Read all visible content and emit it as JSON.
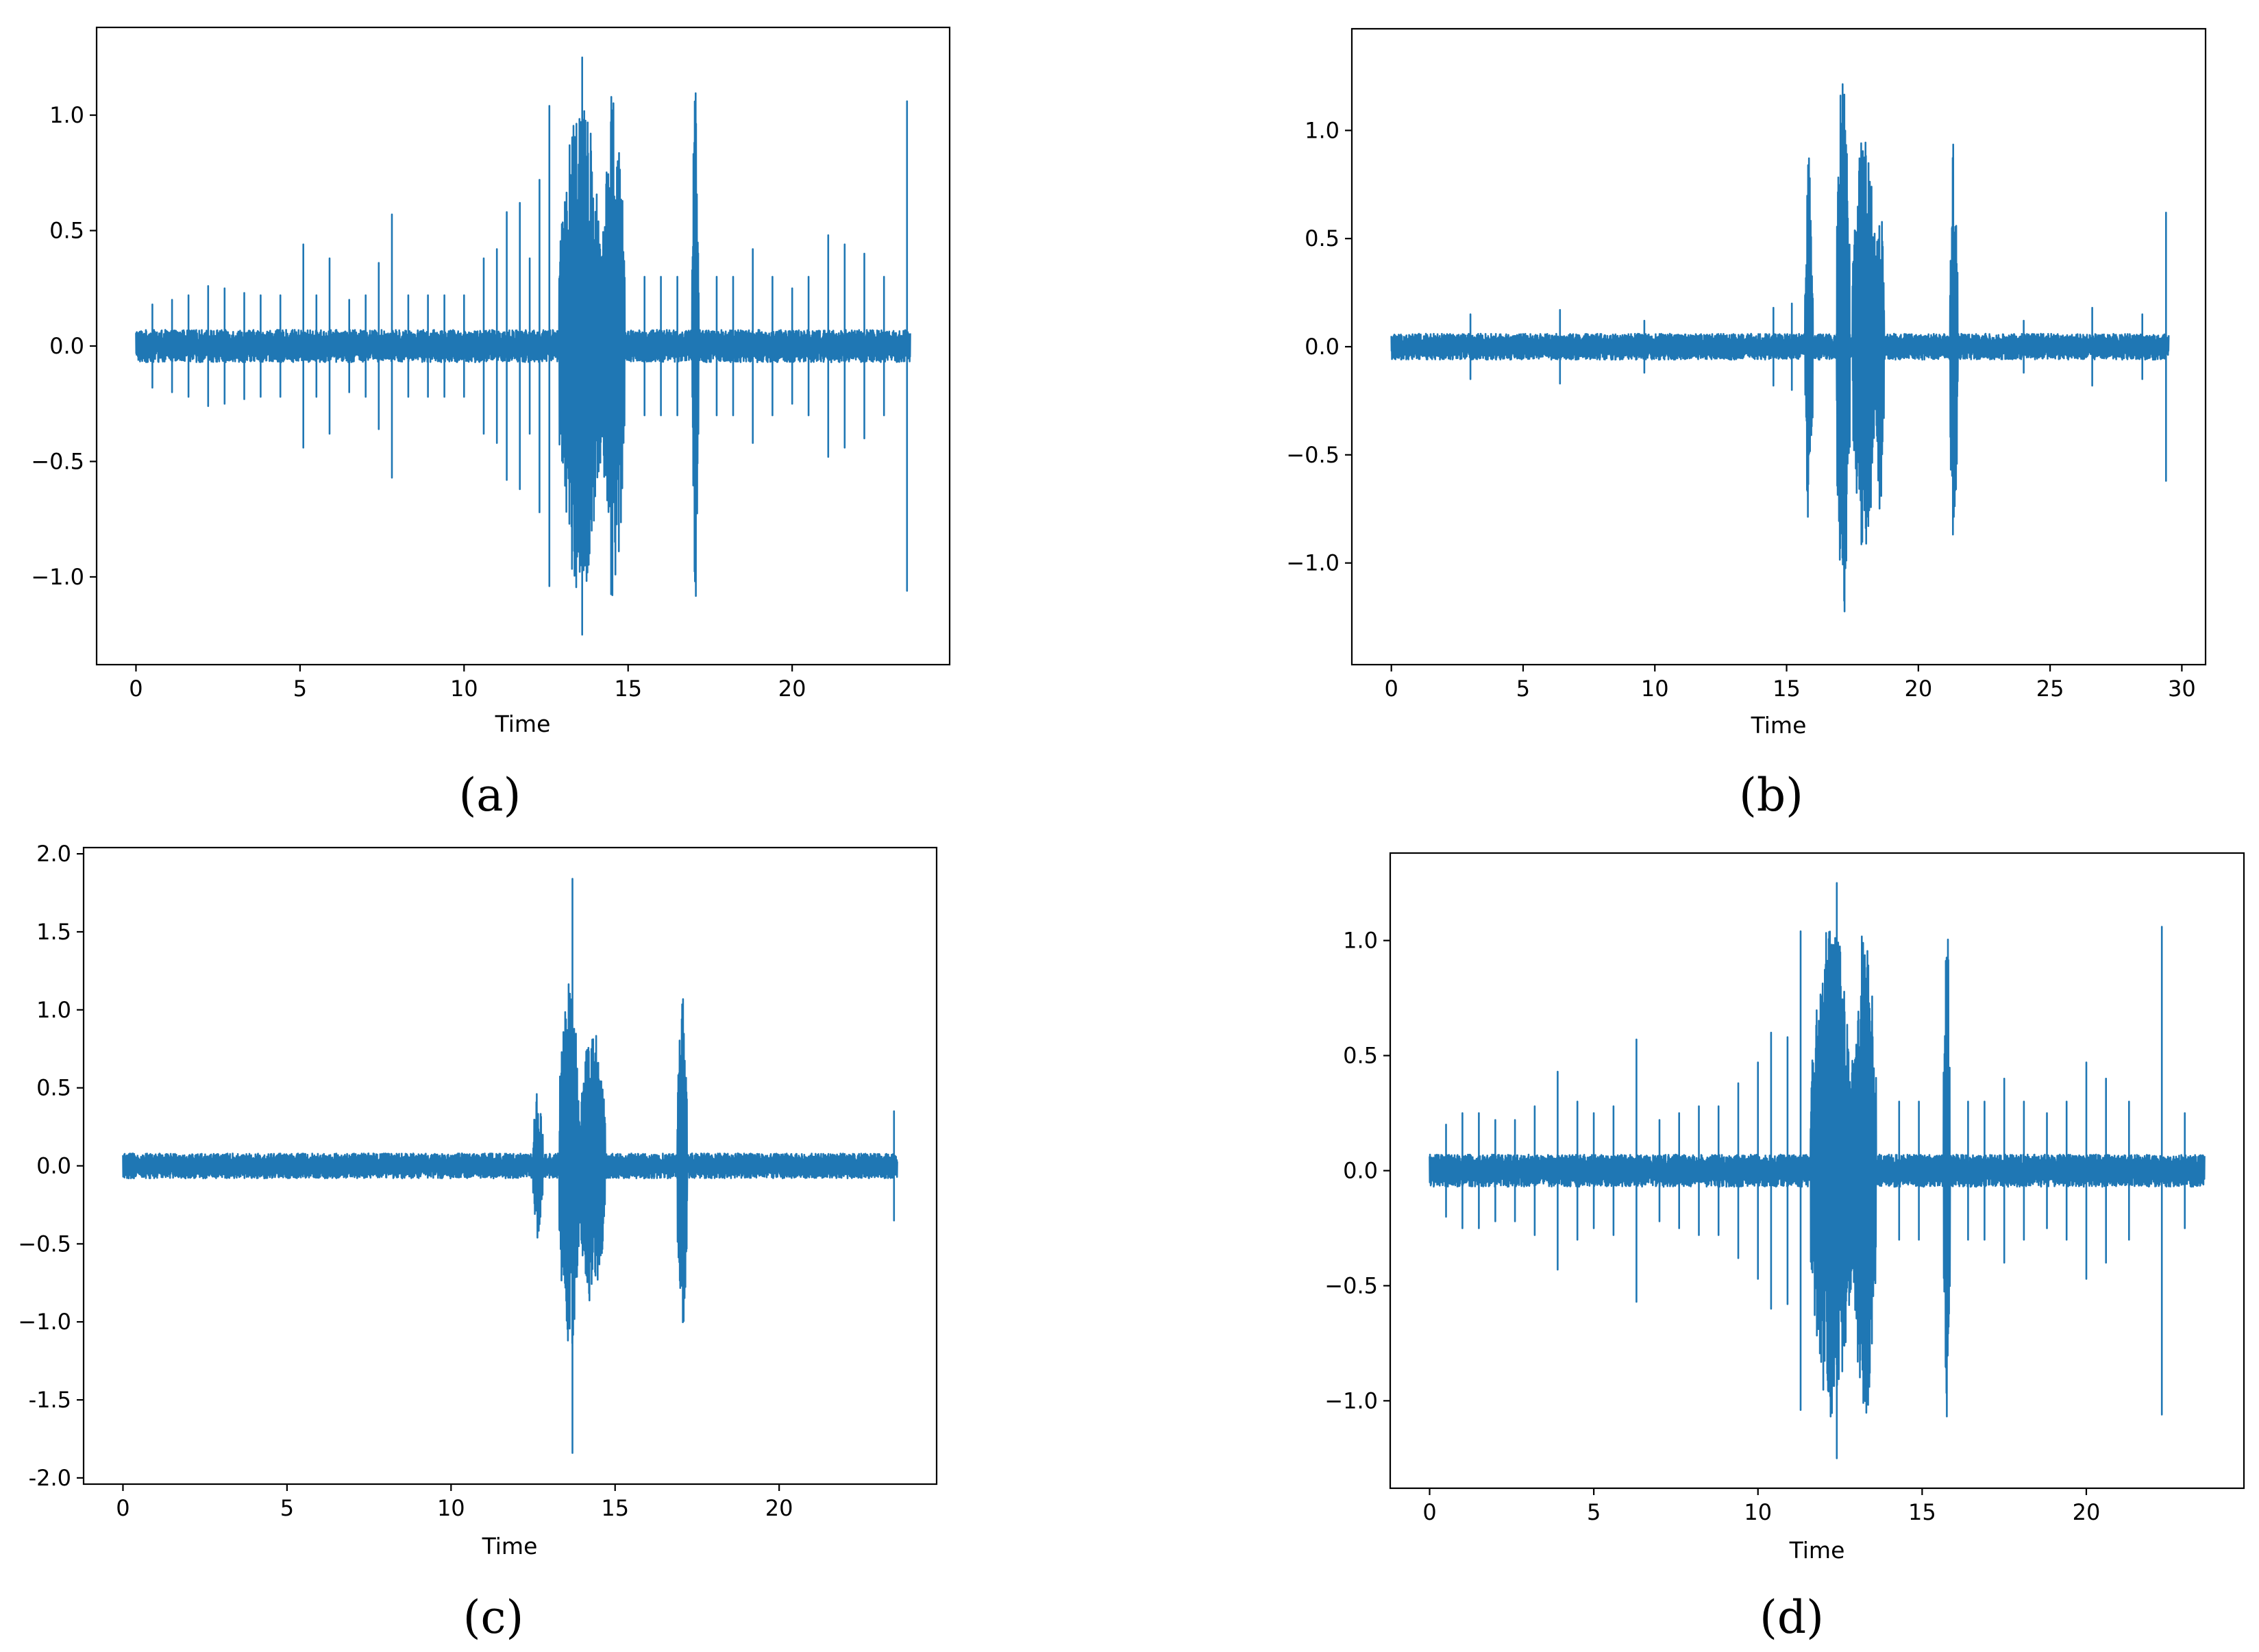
{
  "figure": {
    "line_color": "#1f77b4",
    "captions": [
      "(a)",
      "(b)",
      "(c)",
      "(d)"
    ]
  },
  "chart_data": [
    {
      "type": "line",
      "panel": "(a)",
      "xlabel": "Time",
      "ylabel": "",
      "xlim": [
        -1.2,
        24.8
      ],
      "ylim": [
        -1.38,
        1.38
      ],
      "xticks": [
        0,
        5,
        10,
        15,
        20
      ],
      "xtick_labels": [
        "0",
        "5",
        "10",
        "15",
        "20"
      ],
      "yticks": [
        -1.0,
        -0.5,
        0.0,
        0.5,
        1.0
      ],
      "ytick_labels": [
        "−1.0",
        "−0.5",
        "0.0",
        "0.5",
        "1.0"
      ],
      "series": [
        {
          "duration": 23.6,
          "baseline_amplitude": 0.07,
          "bursts": [
            {
              "start": 12.9,
              "end": 14.2,
              "amplitude": 1.1
            },
            {
              "start": 14.2,
              "end": 14.9,
              "amplitude": 1.12
            },
            {
              "start": 16.95,
              "end": 17.15,
              "amplitude": 1.15
            }
          ],
          "spikes": [
            {
              "t": 0.5,
              "v": 0.18
            },
            {
              "t": 1.1,
              "v": 0.2
            },
            {
              "t": 1.6,
              "v": 0.22
            },
            {
              "t": 2.2,
              "v": 0.26
            },
            {
              "t": 2.7,
              "v": 0.25
            },
            {
              "t": 3.3,
              "v": 0.23
            },
            {
              "t": 3.8,
              "v": 0.22
            },
            {
              "t": 4.4,
              "v": 0.22
            },
            {
              "t": 5.1,
              "v": 0.44
            },
            {
              "t": 5.5,
              "v": 0.22
            },
            {
              "t": 5.9,
              "v": 0.38
            },
            {
              "t": 6.5,
              "v": 0.2
            },
            {
              "t": 7.0,
              "v": 0.22
            },
            {
              "t": 7.4,
              "v": 0.36
            },
            {
              "t": 7.8,
              "v": 0.57
            },
            {
              "t": 8.3,
              "v": 0.22
            },
            {
              "t": 8.9,
              "v": 0.22
            },
            {
              "t": 9.4,
              "v": 0.22
            },
            {
              "t": 10.0,
              "v": 0.22
            },
            {
              "t": 10.6,
              "v": 0.38
            },
            {
              "t": 11.0,
              "v": 0.42
            },
            {
              "t": 11.3,
              "v": 0.58
            },
            {
              "t": 11.7,
              "v": 0.62
            },
            {
              "t": 12.0,
              "v": 0.38
            },
            {
              "t": 12.3,
              "v": 0.72
            },
            {
              "t": 12.6,
              "v": 1.04
            },
            {
              "t": 13.6,
              "v": 1.25
            },
            {
              "t": 15.5,
              "v": 0.3
            },
            {
              "t": 16.0,
              "v": 0.3
            },
            {
              "t": 16.5,
              "v": 0.3
            },
            {
              "t": 17.7,
              "v": 0.3
            },
            {
              "t": 18.2,
              "v": 0.3
            },
            {
              "t": 18.8,
              "v": 0.42
            },
            {
              "t": 19.4,
              "v": 0.3
            },
            {
              "t": 20.0,
              "v": 0.25
            },
            {
              "t": 20.5,
              "v": 0.3
            },
            {
              "t": 21.1,
              "v": 0.48
            },
            {
              "t": 21.6,
              "v": 0.44
            },
            {
              "t": 22.2,
              "v": 0.4
            },
            {
              "t": 22.8,
              "v": 0.3
            },
            {
              "t": 23.5,
              "v": 1.06
            }
          ]
        }
      ]
    },
    {
      "type": "line",
      "panel": "(b)",
      "xlabel": "Time",
      "ylabel": "",
      "xlim": [
        -1.5,
        30.9
      ],
      "ylim": [
        -1.47,
        1.47
      ],
      "xticks": [
        0,
        5,
        10,
        15,
        20,
        25,
        30
      ],
      "xtick_labels": [
        "0",
        "5",
        "10",
        "15",
        "20",
        "25",
        "30"
      ],
      "yticks": [
        -1.0,
        -0.5,
        0.0,
        0.5,
        1.0
      ],
      "ytick_labels": [
        "−1.0",
        "−0.5",
        "0.0",
        "0.5",
        "1.0"
      ],
      "series": [
        {
          "duration": 29.5,
          "baseline_amplitude": 0.06,
          "bursts": [
            {
              "start": 15.7,
              "end": 16.0,
              "amplitude": 0.88
            },
            {
              "start": 16.9,
              "end": 17.4,
              "amplitude": 1.34
            },
            {
              "start": 17.5,
              "end": 18.4,
              "amplitude": 1.0
            },
            {
              "start": 18.4,
              "end": 18.7,
              "amplitude": 0.78
            },
            {
              "start": 21.2,
              "end": 21.5,
              "amplitude": 0.98
            }
          ],
          "spikes": [
            {
              "t": 3.0,
              "v": 0.15
            },
            {
              "t": 6.4,
              "v": 0.17
            },
            {
              "t": 9.6,
              "v": 0.12
            },
            {
              "t": 14.5,
              "v": 0.18
            },
            {
              "t": 15.2,
              "v": 0.2
            },
            {
              "t": 24.0,
              "v": 0.12
            },
            {
              "t": 26.6,
              "v": 0.18
            },
            {
              "t": 28.5,
              "v": 0.15
            },
            {
              "t": 29.4,
              "v": 0.62
            }
          ]
        }
      ]
    },
    {
      "type": "line",
      "panel": "(c)",
      "xlabel": "Time",
      "ylabel": "",
      "xlim": [
        -1.2,
        24.8
      ],
      "ylim": [
        -2.04,
        2.04
      ],
      "xticks": [
        0,
        5,
        10,
        15,
        20
      ],
      "xtick_labels": [
        "0",
        "5",
        "10",
        "15",
        "20"
      ],
      "yticks": [
        -2.0,
        -1.5,
        -1.0,
        -0.5,
        0.0,
        0.5,
        1.0,
        1.5,
        2.0
      ],
      "ytick_labels": [
        "-2.0",
        "-1.5",
        "−1.0",
        "−0.5",
        "0.0",
        "0.5",
        "1.0",
        "1.5",
        "2.0"
      ],
      "series": [
        {
          "duration": 23.6,
          "baseline_amplitude": 0.08,
          "bursts": [
            {
              "start": 12.5,
              "end": 12.8,
              "amplitude": 0.5
            },
            {
              "start": 13.3,
              "end": 13.9,
              "amplitude": 1.25
            },
            {
              "start": 13.9,
              "end": 14.7,
              "amplitude": 0.9
            },
            {
              "start": 16.9,
              "end": 17.2,
              "amplitude": 1.1
            }
          ],
          "spikes": [
            {
              "t": 13.7,
              "v": 1.84
            },
            {
              "t": 23.5,
              "v": 0.35
            }
          ]
        }
      ]
    },
    {
      "type": "line",
      "panel": "(d)",
      "xlabel": "Time",
      "ylabel": "",
      "xlim": [
        -1.2,
        24.8
      ],
      "ylim": [
        -1.38,
        1.38
      ],
      "xticks": [
        0,
        5,
        10,
        15,
        20
      ],
      "xtick_labels": [
        "0",
        "5",
        "10",
        "15",
        "20"
      ],
      "yticks": [
        -1.0,
        -0.5,
        0.0,
        0.5,
        1.0
      ],
      "ytick_labels": [
        "−1.0",
        "−0.5",
        "0.0",
        "0.5",
        "1.0"
      ],
      "series": [
        {
          "duration": 23.6,
          "baseline_amplitude": 0.07,
          "bursts": [
            {
              "start": 11.6,
              "end": 12.9,
              "amplitude": 1.1
            },
            {
              "start": 12.9,
              "end": 13.6,
              "amplitude": 1.12
            },
            {
              "start": 15.65,
              "end": 15.85,
              "amplitude": 1.15
            }
          ],
          "spikes": [
            {
              "t": 0.5,
              "v": 0.2
            },
            {
              "t": 1.0,
              "v": 0.25
            },
            {
              "t": 1.5,
              "v": 0.25
            },
            {
              "t": 2.0,
              "v": 0.22
            },
            {
              "t": 2.6,
              "v": 0.22
            },
            {
              "t": 3.2,
              "v": 0.28
            },
            {
              "t": 3.9,
              "v": 0.43
            },
            {
              "t": 4.5,
              "v": 0.3
            },
            {
              "t": 5.0,
              "v": 0.25
            },
            {
              "t": 5.6,
              "v": 0.28
            },
            {
              "t": 6.3,
              "v": 0.57
            },
            {
              "t": 7.0,
              "v": 0.22
            },
            {
              "t": 7.6,
              "v": 0.25
            },
            {
              "t": 8.2,
              "v": 0.28
            },
            {
              "t": 8.8,
              "v": 0.28
            },
            {
              "t": 9.4,
              "v": 0.38
            },
            {
              "t": 10.0,
              "v": 0.47
            },
            {
              "t": 10.4,
              "v": 0.6
            },
            {
              "t": 10.9,
              "v": 0.58
            },
            {
              "t": 11.3,
              "v": 1.04
            },
            {
              "t": 12.4,
              "v": 1.25
            },
            {
              "t": 14.3,
              "v": 0.3
            },
            {
              "t": 14.9,
              "v": 0.3
            },
            {
              "t": 16.4,
              "v": 0.3
            },
            {
              "t": 16.9,
              "v": 0.3
            },
            {
              "t": 17.5,
              "v": 0.4
            },
            {
              "t": 18.1,
              "v": 0.3
            },
            {
              "t": 18.8,
              "v": 0.25
            },
            {
              "t": 19.4,
              "v": 0.3
            },
            {
              "t": 20.0,
              "v": 0.47
            },
            {
              "t": 20.6,
              "v": 0.4
            },
            {
              "t": 21.3,
              "v": 0.3
            },
            {
              "t": 22.3,
              "v": 1.06
            },
            {
              "t": 23.0,
              "v": 0.25
            }
          ]
        }
      ]
    }
  ]
}
